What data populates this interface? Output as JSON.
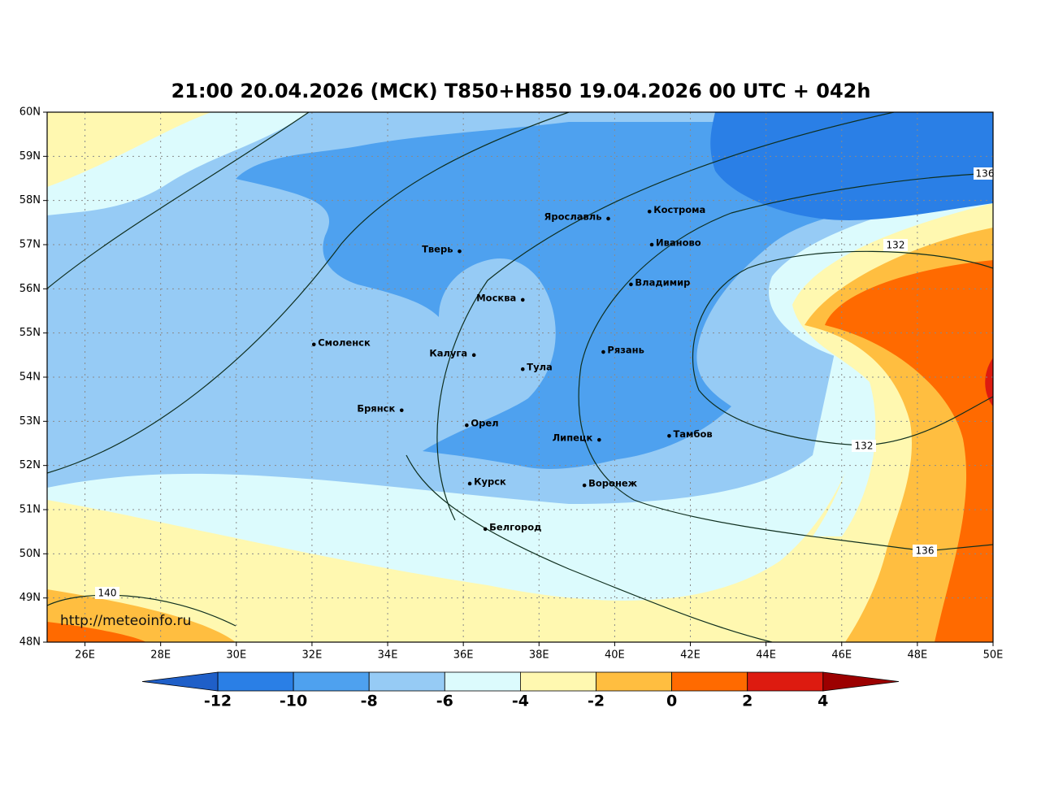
{
  "title": "21:00 20.04.2026 (МСК) T850+H850 19.04.2026 00 UTC + 042h",
  "url": "http://meteoinfo.ru",
  "map": {
    "lonlim": [
      25,
      50
    ],
    "latlim": [
      48,
      60
    ],
    "lon_ticks": [
      {
        "value": 26,
        "label": "26E"
      },
      {
        "value": 28,
        "label": "28E"
      },
      {
        "value": 30,
        "label": "30E"
      },
      {
        "value": 32,
        "label": "32E"
      },
      {
        "value": 34,
        "label": "34E"
      },
      {
        "value": 36,
        "label": "36E"
      },
      {
        "value": 38,
        "label": "38E"
      },
      {
        "value": 40,
        "label": "40E"
      },
      {
        "value": 42,
        "label": "42E"
      },
      {
        "value": 44,
        "label": "44E"
      },
      {
        "value": 46,
        "label": "46E"
      },
      {
        "value": 48,
        "label": "48E"
      },
      {
        "value": 50,
        "label": "50E"
      }
    ],
    "lat_ticks": [
      {
        "value": 48,
        "label": "48N"
      },
      {
        "value": 49,
        "label": "49N"
      },
      {
        "value": 50,
        "label": "50N"
      },
      {
        "value": 51,
        "label": "51N"
      },
      {
        "value": 52,
        "label": "52N"
      },
      {
        "value": 53,
        "label": "53N"
      },
      {
        "value": 54,
        "label": "54N"
      },
      {
        "value": 55,
        "label": "55N"
      },
      {
        "value": 56,
        "label": "56N"
      },
      {
        "value": 57,
        "label": "57N"
      },
      {
        "value": 58,
        "label": "58N"
      },
      {
        "value": 59,
        "label": "59N"
      },
      {
        "value": 60,
        "label": "60N"
      }
    ],
    "cities": [
      {
        "name": "Москва",
        "lon": 37.57,
        "lat": 55.75
      },
      {
        "name": "Тверь",
        "lon": 35.9,
        "lat": 56.85
      },
      {
        "name": "Ярославль",
        "lon": 39.83,
        "lat": 57.59
      },
      {
        "name": "Кострома",
        "lon": 40.92,
        "lat": 57.75
      },
      {
        "name": "Иваново",
        "lon": 40.98,
        "lat": 57.0
      },
      {
        "name": "Владимир",
        "lon": 40.43,
        "lat": 56.1
      },
      {
        "name": "Смоленск",
        "lon": 32.05,
        "lat": 54.74
      },
      {
        "name": "Калуга",
        "lon": 36.28,
        "lat": 54.5
      },
      {
        "name": "Тула",
        "lon": 37.57,
        "lat": 54.18
      },
      {
        "name": "Рязань",
        "lon": 39.7,
        "lat": 54.57
      },
      {
        "name": "Брянск",
        "lon": 34.37,
        "lat": 53.25
      },
      {
        "name": "Орел",
        "lon": 36.09,
        "lat": 52.91
      },
      {
        "name": "Липецк",
        "lon": 39.59,
        "lat": 52.58
      },
      {
        "name": "Тамбов",
        "lon": 41.44,
        "lat": 52.67
      },
      {
        "name": "Курск",
        "lon": 36.17,
        "lat": 51.59
      },
      {
        "name": "Воронеж",
        "lon": 39.2,
        "lat": 51.55
      },
      {
        "name": "Белгород",
        "lon": 36.58,
        "lat": 50.56
      }
    ],
    "contours": [
      {
        "label": "136"
      },
      {
        "label": "132"
      },
      {
        "label": "132"
      },
      {
        "label": "136"
      },
      {
        "label": "140"
      }
    ]
  },
  "colorbar": {
    "ticks": [
      -12,
      -10,
      -8,
      -6,
      -4,
      -2,
      0,
      2,
      4
    ],
    "colors": [
      "#2a7fe6",
      "#4ea1ef",
      "#96cbf5",
      "#dcfbfd",
      "#fff8b0",
      "#ffbe40",
      "#ff6a00",
      "#dd1b10"
    ],
    "under_color": "#1f5fc8",
    "over_color": "#9c0000"
  }
}
